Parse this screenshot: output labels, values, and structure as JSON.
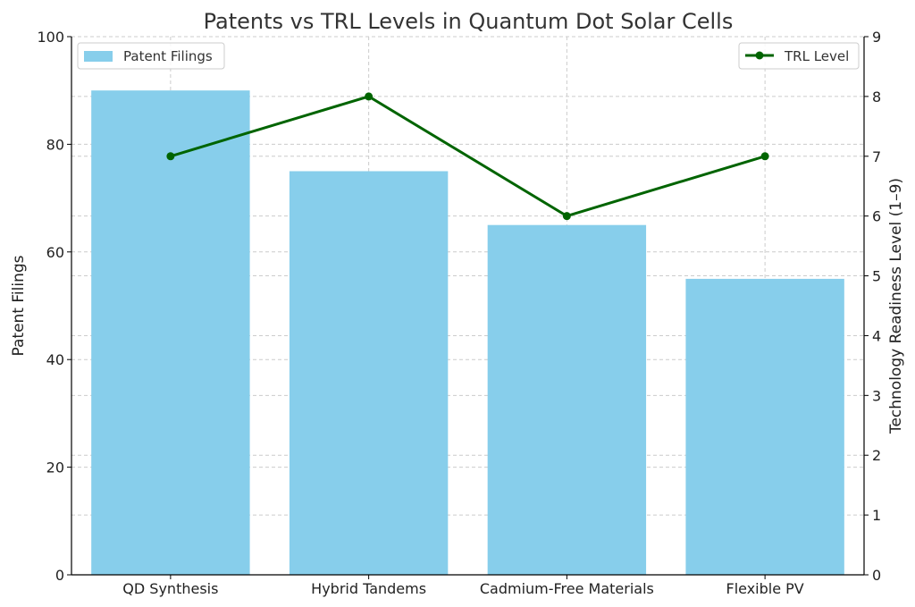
{
  "chart_data": {
    "type": "bar",
    "title": "Patents vs TRL Levels in Quantum Dot Solar Cells",
    "categories": [
      "QD Synthesis",
      "Hybrid Tandems",
      "Cadmium-Free Materials",
      "Flexible PV"
    ],
    "series": [
      {
        "name": "Patent Filings",
        "type": "bar",
        "axis": "left",
        "values": [
          90,
          75,
          65,
          55
        ],
        "color": "#87CEEB"
      },
      {
        "name": "TRL Level",
        "type": "line",
        "axis": "right",
        "values": [
          7,
          8,
          6,
          7
        ],
        "color": "#006400"
      }
    ],
    "ylabel": "Patent Filings",
    "ylim": [
      0,
      100
    ],
    "yticks": [
      0,
      20,
      40,
      60,
      80,
      100
    ],
    "y2label": "Technology Readiness Level (1–9)",
    "y2lim": [
      0,
      9
    ],
    "y2ticks": [
      0,
      1,
      2,
      3,
      4,
      5,
      6,
      7,
      8,
      9
    ],
    "grid": true,
    "legend_positions": [
      "top-left",
      "top-right"
    ]
  }
}
